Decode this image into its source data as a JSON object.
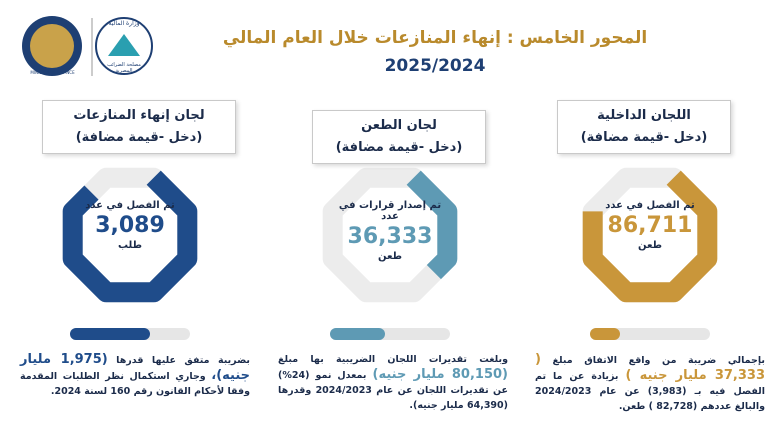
{
  "header": {
    "title": "المحور الخامس : إنهاء المنازعات خلال العام المالي",
    "subtitle": "2025/2024",
    "logo_left_text": "MINISTRY OF FINANCE",
    "logo_right_text": "وزارة المالية",
    "logo_right_subtext": "مصلحة الضرائب المصرية"
  },
  "cards": [
    {
      "title": "اللجان الداخلية",
      "subtitle": "(دخل -قيمة مضافة)",
      "caption": "تم الفصل في عدد",
      "number": "86,711",
      "unit": "طعن",
      "note_before": "بإجمالي ضريبة من واقع الاتفاق مبلغ",
      "note_highlight": "( 37,333 مليار جنيه )",
      "note_after": "بزيادة عن ما تم الفصل فيه بـ (3,983) عن عام 2024/2023 والبالغ عددهم (82,728 ) طعن."
    },
    {
      "title": "لجان الطعن",
      "subtitle": "(دخل -قيمة مضافة)",
      "caption": "تم إصدار قرارات في عدد",
      "number": "36,333",
      "unit": "طعن",
      "note_before": "وبلغت تقديرات اللجان الضريبية بها مبلغ",
      "note_highlight": "(80,150 مليار جنيه)",
      "note_after": "بمعدل نمو (24%) عن تقديرات اللجان عن عام 2024/2023 وقدرها (64,390 مليار جنيه)."
    },
    {
      "title": "لجان إنهاء المنازعات",
      "subtitle": "(دخل -قيمة مضافة)",
      "caption": "تم الفصل في عدد",
      "number": "3,089",
      "unit": "طلب",
      "note_before": "بضريبة متفق عليها قدرها",
      "note_highlight": "(1,975 مليار جنيه)،",
      "note_after": "وجاري استكمال نظر الطلبات المقدمة وفقا لأحكام القانون رقم 160 لسنة 2024."
    }
  ]
}
